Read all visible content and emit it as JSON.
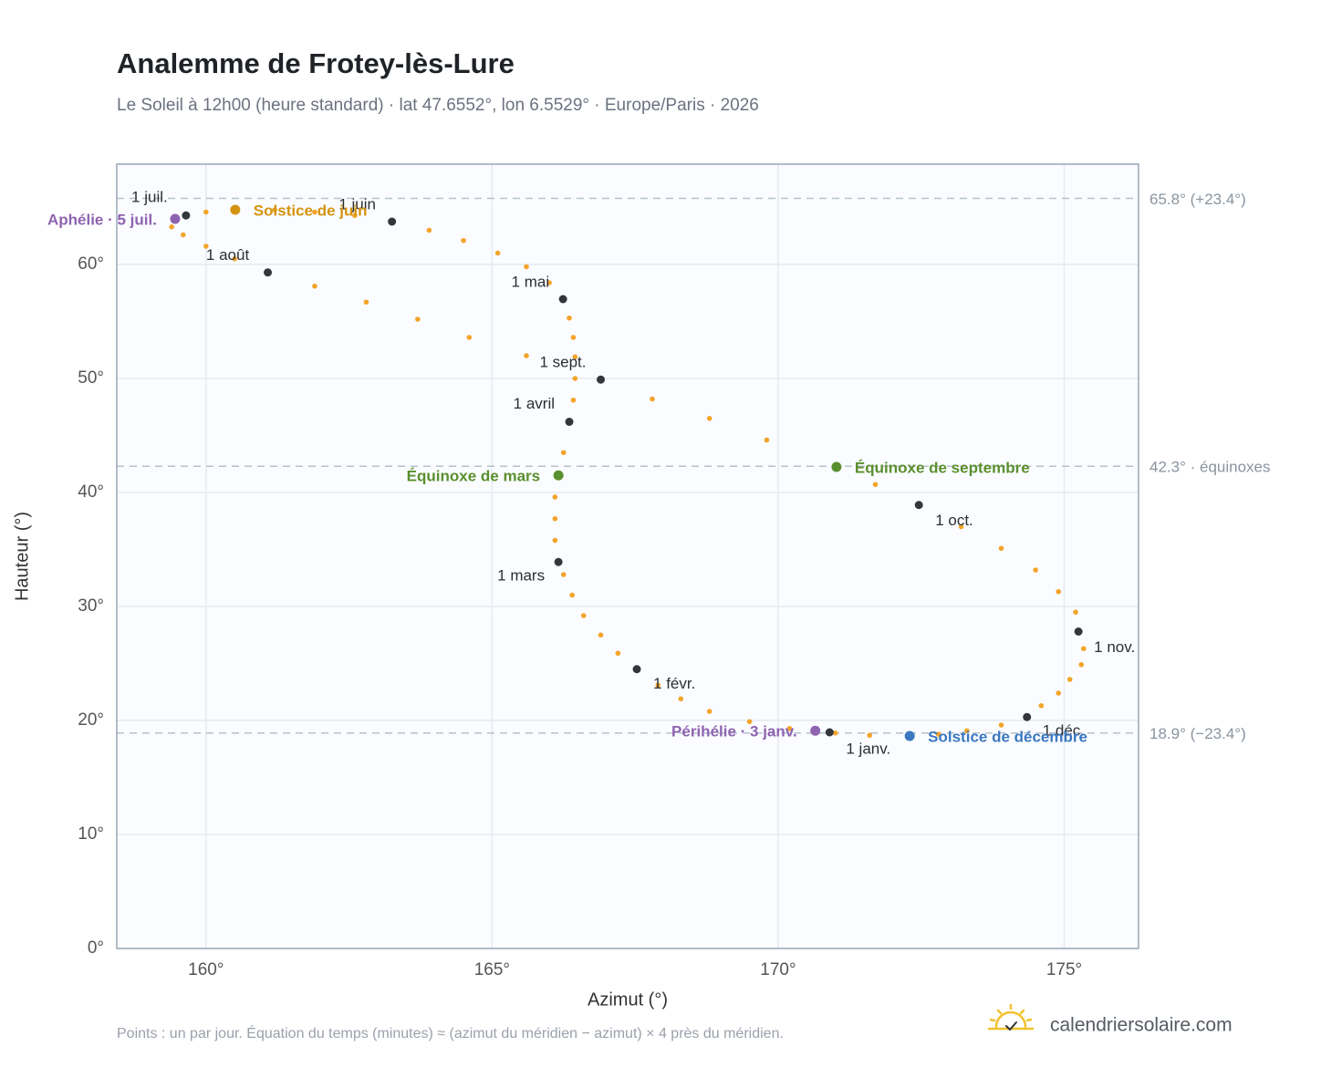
{
  "chart_data": {
    "type": "scatter",
    "title": "Analemme de Frotey-lès-Lure",
    "subtitle": "Le Soleil à 12h00 (heure standard) · lat 47.6552°, lon 6.5529° · Europe/Paris · 2026",
    "x_label": "Azimut (°)",
    "y_label": "Hauteur (°)",
    "note": "Points : un par jour. Équation du temps (minutes) ≈ (azimut du méridien − azimut) × 4 près du méridien.",
    "brand": "calendriersolaire.com",
    "color": "#f3a42a",
    "x": [
      170.9,
      170.2,
      169.5,
      168.8,
      168.3,
      167.9,
      167.53,
      167.2,
      166.9,
      166.6,
      166.4,
      166.25,
      166.16,
      166.1,
      166.1,
      166.1,
      166.16,
      166.25,
      166.35,
      166.42,
      166.45,
      166.45,
      166.42,
      166.35,
      166.24,
      166.0,
      165.6,
      165.1,
      164.5,
      163.9,
      163.25,
      162.6,
      161.9,
      161.2,
      160.51,
      160.0,
      159.65,
      159.45,
      159.4,
      159.6,
      160.0,
      160.5,
      161.08,
      161.9,
      162.8,
      163.7,
      164.6,
      165.6,
      166.9,
      167.8,
      168.8,
      169.8,
      171.02,
      171.7,
      172.46,
      173.2,
      173.9,
      174.5,
      174.9,
      175.2,
      175.25,
      175.34,
      175.3,
      175.1,
      174.9,
      174.6,
      174.35,
      173.9,
      173.3,
      172.8,
      172.3,
      171.6,
      171.0
    ],
    "values": [
      18.96,
      19.3,
      19.9,
      20.8,
      21.9,
      23.1,
      24.5,
      25.9,
      27.5,
      29.2,
      31.0,
      32.8,
      33.9,
      35.8,
      37.7,
      39.6,
      41.5,
      43.5,
      46.2,
      48.1,
      50.0,
      51.9,
      53.6,
      55.3,
      56.96,
      58.4,
      59.8,
      61.0,
      62.1,
      63.0,
      63.76,
      64.3,
      64.6,
      64.8,
      64.8,
      64.6,
      64.3,
      63.95,
      63.3,
      62.6,
      61.6,
      60.5,
      59.3,
      58.1,
      56.7,
      55.2,
      53.6,
      52.0,
      49.9,
      48.2,
      46.5,
      44.6,
      42.24,
      40.7,
      38.9,
      37.0,
      35.1,
      33.2,
      31.3,
      29.5,
      27.8,
      26.3,
      24.9,
      23.6,
      22.4,
      21.3,
      20.3,
      19.6,
      19.1,
      18.8,
      18.64,
      18.7,
      18.9
    ],
    "month_markers": [
      {
        "label": "1 janv.",
        "x": 170.9,
        "y": 18.96
      },
      {
        "label": "1 févr.",
        "x": 167.53,
        "y": 24.5
      },
      {
        "label": "1 mars",
        "x": 166.16,
        "y": 33.9
      },
      {
        "label": "1 avril",
        "x": 166.35,
        "y": 46.2
      },
      {
        "label": "1 mai",
        "x": 166.24,
        "y": 56.96
      },
      {
        "label": "1 juin",
        "x": 163.25,
        "y": 63.76
      },
      {
        "label": "1 juil.",
        "x": 159.65,
        "y": 64.3
      },
      {
        "label": "1 août",
        "x": 161.08,
        "y": 59.3
      },
      {
        "label": "1 sept.",
        "x": 166.9,
        "y": 49.9
      },
      {
        "label": "1 oct.",
        "x": 172.46,
        "y": 38.9
      },
      {
        "label": "1 nov.",
        "x": 175.25,
        "y": 27.8
      },
      {
        "label": "1 déc.",
        "x": 174.35,
        "y": 20.3
      }
    ],
    "marker_color": "#33363b",
    "events": [
      {
        "label": "Aphélie · 5 juil.",
        "x": 159.46,
        "y": 64.0,
        "color": "#8e63b0"
      },
      {
        "label": "Solstice de juin",
        "x": 160.51,
        "y": 64.8,
        "color": "#d4940f"
      },
      {
        "label": "Équinoxe de mars",
        "x": 166.16,
        "y": 41.5,
        "color": "#5a8f2e"
      },
      {
        "label": "Équinoxe de septembre",
        "x": 171.02,
        "y": 42.24,
        "color": "#5a8f2e"
      },
      {
        "label": "Périhélie · 3 janv.",
        "x": 170.65,
        "y": 19.1,
        "color": "#8e63b0"
      },
      {
        "label": "Solstice de décembre",
        "x": 172.3,
        "y": 18.64,
        "color": "#3a78c0"
      }
    ],
    "reference_lines": [
      {
        "value": 65.8,
        "label": "65.8° (+23.4°)"
      },
      {
        "value": 42.3,
        "label": "42.3° · équinoxes"
      },
      {
        "value": 18.9,
        "label": "18.9° (−23.4°)"
      }
    ],
    "xlim": [
      158.44,
      176.3
    ],
    "ylim": [
      0,
      68.8
    ],
    "xticks": [
      {
        "value": 160,
        "label": "160°"
      },
      {
        "value": 165,
        "label": "165°"
      },
      {
        "value": 170,
        "label": "170°"
      },
      {
        "value": 175,
        "label": "175°"
      }
    ],
    "yticks": [
      {
        "value": 0,
        "label": "0°"
      },
      {
        "value": 10,
        "label": "10°"
      },
      {
        "value": 20,
        "label": "20°"
      },
      {
        "value": 30,
        "label": "30°"
      },
      {
        "value": 40,
        "label": "40°"
      },
      {
        "value": 50,
        "label": "50°"
      },
      {
        "value": 60,
        "label": "60°"
      }
    ],
    "grid": true
  }
}
